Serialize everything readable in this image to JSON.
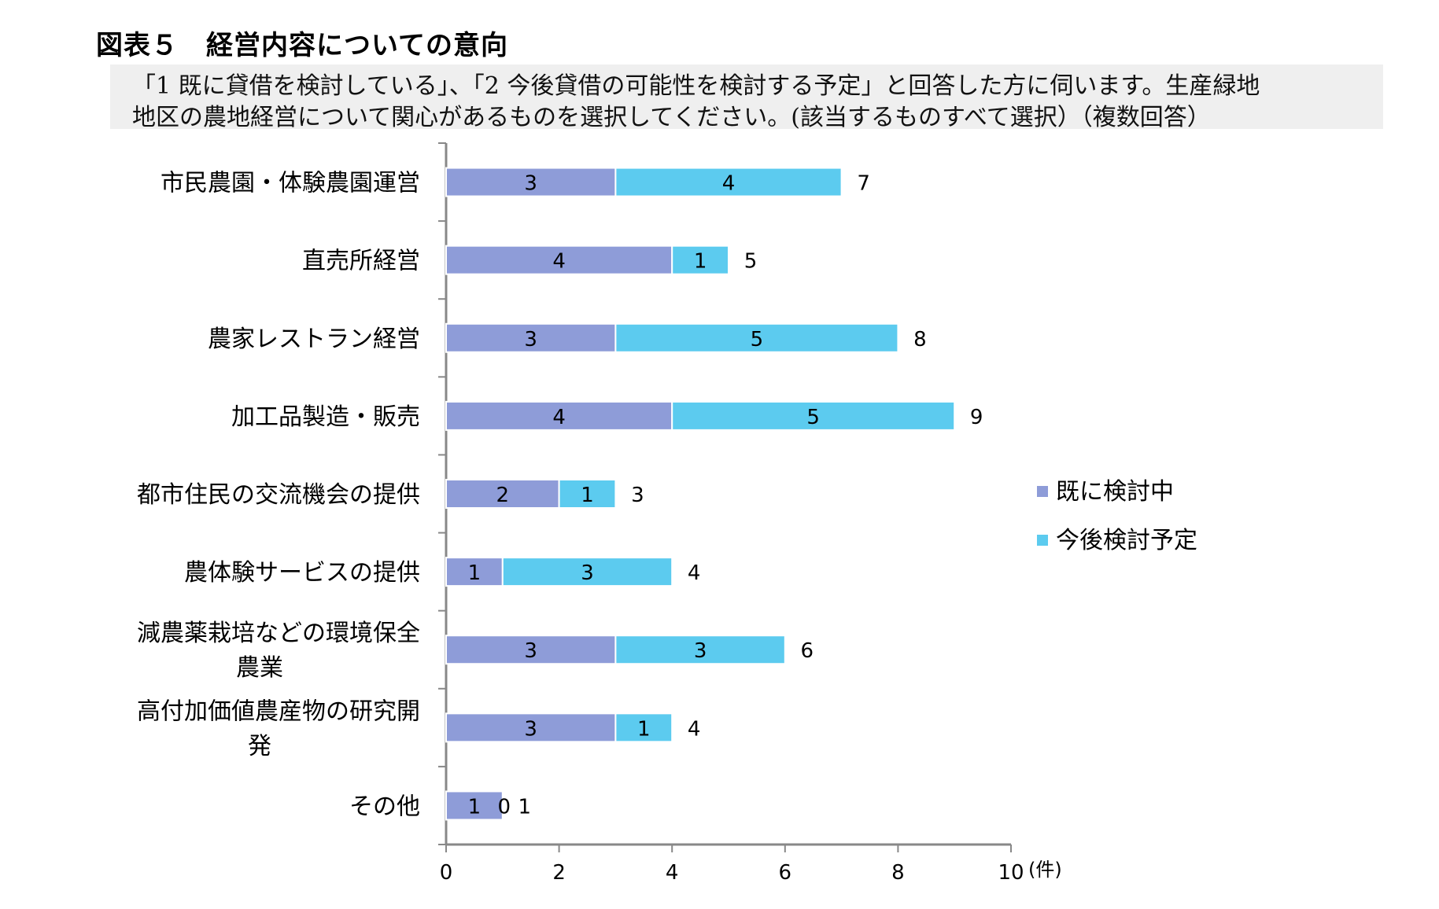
{
  "figure": {
    "title": "図表５　経営内容についての意向",
    "question_line1": "「1 既に貸借を検討している」、「2 今後貸借の可能性を検討する予定」と回答した方に伺います。生産緑地",
    "question_line2": "地区の農地経営について関心があるものを選択してください。(該当するものすべて選択）（複数回答）"
  },
  "chart_data": {
    "type": "bar",
    "orientation": "horizontal",
    "stacked": true,
    "categories": [
      "市民農園・体験農園運営",
      "直売所経営",
      "農家レストラン経営",
      "加工品製造・販売",
      "都市住民の交流機会の提供",
      "農体験サービスの提供",
      "減農薬栽培などの環境保全農業",
      "高付加価値農産物の研究開発",
      "その他"
    ],
    "series": [
      {
        "name": "既に検討中",
        "color": "#8e9cd8",
        "values": [
          3,
          4,
          3,
          4,
          2,
          1,
          3,
          3,
          1
        ]
      },
      {
        "name": "今後検討予定",
        "color": "#5ccbef",
        "values": [
          4,
          1,
          5,
          5,
          1,
          3,
          3,
          1,
          0
        ]
      }
    ],
    "totals": [
      7,
      5,
      8,
      9,
      3,
      4,
      6,
      4,
      1
    ],
    "xlim": [
      0,
      10
    ],
    "xticks": [
      "0",
      "2",
      "4",
      "6",
      "8",
      "10"
    ],
    "unit": "(件)",
    "legend_position": "right",
    "grid": false
  }
}
